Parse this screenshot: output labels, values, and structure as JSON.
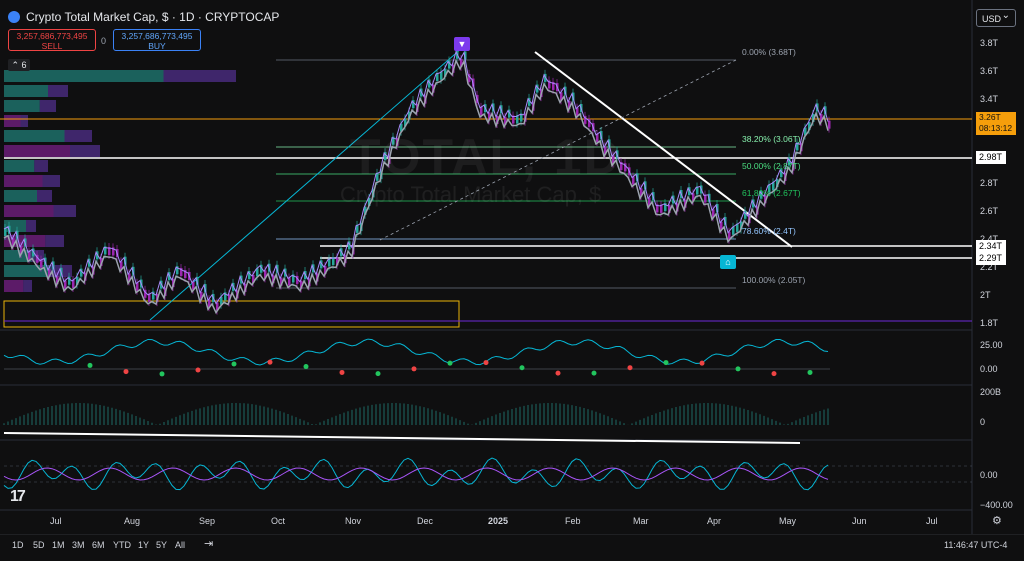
{
  "header": {
    "title": "Crypto Total Market Cap, $ · 1D · CRYPTOCAP",
    "sell_price": "3,257,686,773,495",
    "sell_label": "SELL",
    "buy_price": "3,257,686,773,495",
    "buy_label": "BUY",
    "spread": "0",
    "currency": "USD",
    "indicator_count": "6"
  },
  "watermark": {
    "symbol": "TOTAL, 1D",
    "name": "Crypto Total Market Cap, $"
  },
  "price_axis": {
    "ticks": [
      "3.8T",
      "3.6T",
      "3.4T",
      "2.8T",
      "2.6T",
      "2.4T",
      "2.2T",
      "2T",
      "1.8T"
    ],
    "current_price": "3.26T",
    "countdown": "08:13:12",
    "level_tags": [
      "2.98T",
      "2.34T",
      "2.29T"
    ]
  },
  "fib_levels": [
    {
      "label": "0.00% (3.68T)",
      "color": "#9ca3af"
    },
    {
      "label": "38.20% (3.06T)",
      "color": "#86efac"
    },
    {
      "label": "50.00% (2.87T)",
      "color": "#4ade80"
    },
    {
      "label": "61.80% (2.67T)",
      "color": "#22c55e"
    },
    {
      "label": "78.60% (2.4T)",
      "color": "#93c5fd"
    },
    {
      "label": "100.00% (2.05T)",
      "color": "#9ca3af"
    }
  ],
  "oscillators": {
    "panel1_ticks": [
      "25.00",
      "0.00"
    ],
    "panel2_ticks": [
      "200B",
      "0"
    ],
    "panel3_ticks": [
      "0.00",
      "−400.00"
    ]
  },
  "time_axis": [
    "Jul",
    "Aug",
    "Sep",
    "Oct",
    "Nov",
    "Dec",
    "2025",
    "Feb",
    "Mar",
    "Apr",
    "May",
    "Jun",
    "Jul"
  ],
  "timeframes": [
    "1D",
    "5D",
    "1M",
    "3M",
    "6M",
    "YTD",
    "1Y",
    "5Y",
    "All"
  ],
  "clock": "11:46:47 UTC-4",
  "colors": {
    "bull": "#26a69a",
    "bear": "#9c27b0",
    "accent": "#f59e0b",
    "trendline": "#ffffff"
  }
}
